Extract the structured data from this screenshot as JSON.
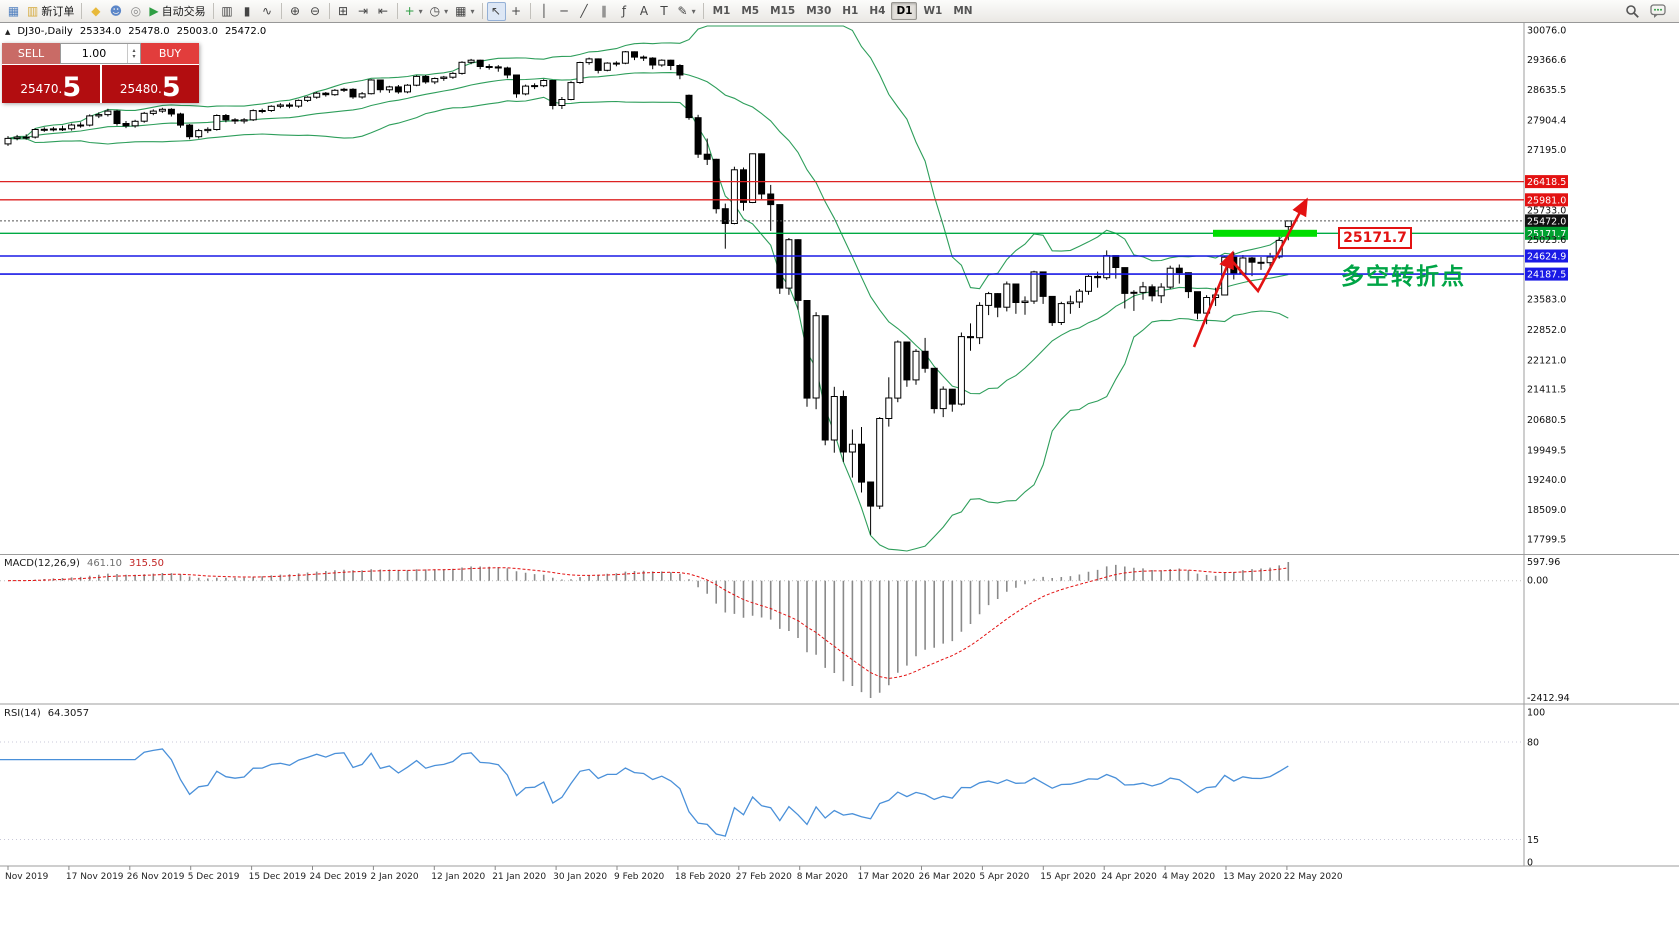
{
  "toolbar": {
    "items": [
      {
        "name": "chart-window-icon",
        "glyph": "▦",
        "color": "#4f7fbf"
      },
      {
        "name": "new-order-button",
        "glyph": "▥",
        "color": "#d5aa3c",
        "label": "新订单"
      },
      {
        "sep": true
      },
      {
        "name": "history-center-button",
        "glyph": "◆",
        "color": "#e8b93a"
      },
      {
        "name": "profile-button",
        "glyph": "☻",
        "color": "#5b86c8"
      },
      {
        "name": "community-button",
        "glyph": "◎",
        "color": "#8a8a8a"
      },
      {
        "name": "autotrading-button",
        "glyph": "▶",
        "color": "#2f9e44",
        "label": "自动交易"
      },
      {
        "sep": true
      },
      {
        "name": "bar-chart-button",
        "glyph": "▥"
      },
      {
        "name": "candlestick-chart-button",
        "glyph": "▮"
      },
      {
        "name": "line-chart-button",
        "glyph": "∿"
      },
      {
        "sep": true
      },
      {
        "name": "zoom-in-button",
        "glyph": "⊕"
      },
      {
        "name": "zoom-out-button",
        "glyph": "⊖"
      },
      {
        "sep": true
      },
      {
        "name": "tile-windows-button",
        "glyph": "⊞"
      },
      {
        "name": "auto-scroll-button",
        "glyph": "⇥"
      },
      {
        "name": "chart-shift-button",
        "glyph": "⇤"
      },
      {
        "sep": true
      },
      {
        "name": "new-chart-button",
        "glyph": "+",
        "color": "#2f9e44",
        "dropdown": true
      },
      {
        "name": "profiles-button",
        "glyph": "◷",
        "dropdown": true
      },
      {
        "name": "templates-button",
        "glyph": "▦",
        "dropdown": true
      },
      {
        "sep": true
      },
      {
        "name": "cursor-button",
        "glyph": "↖",
        "active": true
      },
      {
        "name": "crosshair-button",
        "glyph": "+"
      },
      {
        "sep": true
      },
      {
        "name": "vertical-line-button",
        "glyph": "│"
      },
      {
        "name": "horizontal-line-button",
        "glyph": "─"
      },
      {
        "name": "trendline-button",
        "glyph": "╱"
      },
      {
        "name": "channel-button",
        "glyph": "∥"
      },
      {
        "name": "fibonacci-button",
        "glyph": "ƒ"
      },
      {
        "name": "text-button",
        "glyph": "A"
      },
      {
        "name": "label-button",
        "glyph": "T"
      },
      {
        "name": "shapes-button",
        "glyph": "✎",
        "dropdown": true
      },
      {
        "sep": true
      }
    ],
    "timeframes": [
      "M1",
      "M5",
      "M15",
      "M30",
      "H1",
      "H4",
      "D1",
      "W1",
      "MN"
    ],
    "active_timeframe": "D1"
  },
  "chart_header": {
    "collapse_icon": "▲",
    "symbol": "DJ30-,Daily",
    "open": "25334.0",
    "high": "25478.0",
    "low": "25003.0",
    "close": "25472.0"
  },
  "trade_panel": {
    "sell_label": "SELL",
    "buy_label": "BUY",
    "volume": "1.00",
    "spinner_up": "▴",
    "spinner_down": "▾",
    "sell_price_main": "25470.",
    "sell_price_big": "5",
    "buy_price_main": "25480.",
    "buy_price_big": "5"
  },
  "annotations": {
    "price_label": "25171.7",
    "note_text": "多空转折点"
  },
  "chart_data": {
    "type": "candlestick",
    "symbol": "DJ30",
    "period": "Daily",
    "ohlc": [
      [
        27330,
        27517,
        27280,
        27462
      ],
      [
        27462,
        27545,
        27415,
        27493
      ],
      [
        27493,
        27560,
        27430,
        27492
      ],
      [
        27492,
        27700,
        27460,
        27675
      ],
      [
        27675,
        27730,
        27620,
        27681
      ],
      [
        27681,
        27740,
        27630,
        27691
      ],
      [
        27691,
        27770,
        27640,
        27692
      ],
      [
        27692,
        27820,
        27650,
        27784
      ],
      [
        27784,
        27850,
        27720,
        27782
      ],
      [
        27782,
        28040,
        27750,
        28005
      ],
      [
        28005,
        28090,
        27950,
        28036
      ],
      [
        28036,
        28175,
        27990,
        28121
      ],
      [
        28121,
        28150,
        27770,
        27821
      ],
      [
        27821,
        27880,
        27710,
        27766
      ],
      [
        27766,
        27910,
        27720,
        27875
      ],
      [
        27875,
        28100,
        27840,
        28066
      ],
      [
        28066,
        28160,
        28020,
        28121
      ],
      [
        28121,
        28200,
        28080,
        28164
      ],
      [
        28164,
        28190,
        27990,
        28051
      ],
      [
        28051,
        28080,
        27720,
        27783
      ],
      [
        27783,
        27810,
        27440,
        27503
      ],
      [
        27503,
        27690,
        27460,
        27650
      ],
      [
        27650,
        27730,
        27590,
        27678
      ],
      [
        27678,
        28040,
        27650,
        28015
      ],
      [
        28015,
        28050,
        27850,
        27910
      ],
      [
        27910,
        27950,
        27810,
        27882
      ],
      [
        27882,
        27950,
        27820,
        27911
      ],
      [
        27911,
        28160,
        27880,
        28132
      ],
      [
        28132,
        28180,
        28070,
        28135
      ],
      [
        28135,
        28260,
        28100,
        28236
      ],
      [
        28236,
        28310,
        28190,
        28267
      ],
      [
        28267,
        28320,
        28190,
        28239
      ],
      [
        28239,
        28400,
        28200,
        28377
      ],
      [
        28377,
        28480,
        28340,
        28455
      ],
      [
        28455,
        28580,
        28420,
        28551
      ],
      [
        28551,
        28580,
        28470,
        28516
      ],
      [
        28516,
        28650,
        28490,
        28622
      ],
      [
        28622,
        28680,
        28580,
        28645
      ],
      [
        28645,
        28670,
        28420,
        28462
      ],
      [
        28462,
        28580,
        28420,
        28538
      ],
      [
        28538,
        28890,
        28520,
        28869
      ],
      [
        28869,
        28880,
        28565,
        28635
      ],
      [
        28635,
        28730,
        28560,
        28704
      ],
      [
        28704,
        28750,
        28540,
        28584
      ],
      [
        28584,
        28770,
        28550,
        28745
      ],
      [
        28745,
        28980,
        28720,
        28957
      ],
      [
        28957,
        28990,
        28780,
        28824
      ],
      [
        28824,
        28930,
        28770,
        28907
      ],
      [
        28907,
        28970,
        28850,
        28939
      ],
      [
        28939,
        29060,
        28900,
        29030
      ],
      [
        29030,
        29320,
        29000,
        29298
      ],
      [
        29298,
        29380,
        29250,
        29348
      ],
      [
        29348,
        29360,
        29130,
        29196
      ],
      [
        29196,
        29250,
        29120,
        29186
      ],
      [
        29186,
        29230,
        29070,
        29160
      ],
      [
        29160,
        29190,
        28910,
        28990
      ],
      [
        28990,
        29000,
        28440,
        28536
      ],
      [
        28536,
        28760,
        28500,
        28723
      ],
      [
        28723,
        28790,
        28650,
        28734
      ],
      [
        28734,
        28890,
        28700,
        28859
      ],
      [
        28859,
        28870,
        28160,
        28256
      ],
      [
        28256,
        28460,
        28170,
        28400
      ],
      [
        28400,
        28840,
        28380,
        28808
      ],
      [
        28808,
        29310,
        28780,
        29291
      ],
      [
        29291,
        29410,
        29240,
        29380
      ],
      [
        29380,
        29390,
        29030,
        29103
      ],
      [
        29103,
        29300,
        29080,
        29277
      ],
      [
        29277,
        29320,
        29200,
        29276
      ],
      [
        29276,
        29570,
        29250,
        29551
      ],
      [
        29551,
        29560,
        29350,
        29423
      ],
      [
        29423,
        29460,
        29330,
        29398
      ],
      [
        29398,
        29420,
        29130,
        29232
      ],
      [
        29232,
        29370,
        29190,
        29348
      ],
      [
        29348,
        29360,
        29110,
        29220
      ],
      [
        29220,
        29250,
        28890,
        28992
      ],
      [
        28500,
        28520,
        27910,
        27961
      ],
      [
        27961,
        28030,
        26990,
        27081
      ],
      [
        27081,
        27460,
        26820,
        26958
      ],
      [
        26958,
        26970,
        25650,
        25767
      ],
      [
        25767,
        25890,
        24800,
        25409
      ],
      [
        25409,
        26780,
        25390,
        26703
      ],
      [
        26703,
        26760,
        25720,
        25917
      ],
      [
        25917,
        27100,
        25900,
        27091
      ],
      [
        27091,
        27100,
        26000,
        26121
      ],
      [
        26121,
        26340,
        25230,
        25865
      ],
      [
        25865,
        25870,
        23710,
        23851
      ],
      [
        23851,
        25060,
        23690,
        25018
      ],
      [
        25018,
        25030,
        23330,
        23553
      ],
      [
        23553,
        23560,
        20990,
        21200
      ],
      [
        21200,
        23270,
        20930,
        23186
      ],
      [
        23186,
        23190,
        20060,
        20188
      ],
      [
        20188,
        21470,
        19880,
        21237
      ],
      [
        21237,
        21380,
        19660,
        19899
      ],
      [
        19899,
        20440,
        19280,
        20087
      ],
      [
        20087,
        20500,
        18920,
        19174
      ],
      [
        19174,
        19180,
        17900,
        18592
      ],
      [
        18592,
        20740,
        18520,
        20705
      ],
      [
        20705,
        21700,
        20510,
        21200
      ],
      [
        21200,
        22590,
        21100,
        22552
      ],
      [
        22552,
        22560,
        21470,
        21637
      ],
      [
        21637,
        22380,
        21520,
        22327
      ],
      [
        22327,
        22650,
        21810,
        21917
      ],
      [
        21917,
        21920,
        20830,
        20944
      ],
      [
        20944,
        21480,
        20740,
        21413
      ],
      [
        21413,
        21420,
        20870,
        21053
      ],
      [
        21053,
        22780,
        21020,
        22680
      ],
      [
        22680,
        23000,
        22340,
        22654
      ],
      [
        22654,
        23510,
        22500,
        23434
      ],
      [
        23434,
        23760,
        23200,
        23719
      ],
      [
        23719,
        23730,
        23150,
        23391
      ],
      [
        23391,
        24010,
        23290,
        23950
      ],
      [
        23950,
        23960,
        23230,
        23504
      ],
      [
        23504,
        23650,
        23210,
        23537
      ],
      [
        23537,
        24270,
        23470,
        24242
      ],
      [
        24242,
        24250,
        23470,
        23650
      ],
      [
        23650,
        23660,
        22940,
        23019
      ],
      [
        23019,
        23520,
        22960,
        23476
      ],
      [
        23476,
        23670,
        23230,
        23515
      ],
      [
        23515,
        23830,
        23370,
        23775
      ],
      [
        23775,
        24170,
        23690,
        24134
      ],
      [
        24134,
        24250,
        23860,
        24102
      ],
      [
        24102,
        24760,
        24050,
        24634
      ],
      [
        24634,
        24640,
        24080,
        24346
      ],
      [
        24346,
        24350,
        23360,
        23724
      ],
      [
        23724,
        23800,
        23300,
        23749
      ],
      [
        23749,
        24000,
        23570,
        23883
      ],
      [
        23883,
        23940,
        23530,
        23665
      ],
      [
        23665,
        23970,
        23490,
        23876
      ],
      [
        23876,
        24390,
        23830,
        24331
      ],
      [
        24331,
        24420,
        23960,
        24222
      ],
      [
        24222,
        24230,
        23610,
        23765
      ],
      [
        23765,
        23770,
        23100,
        23248
      ],
      [
        23248,
        23680,
        22980,
        23625
      ],
      [
        23625,
        23860,
        23420,
        23685
      ],
      [
        23685,
        24620,
        23680,
        24597
      ],
      [
        24597,
        24720,
        24060,
        24207
      ],
      [
        24207,
        24650,
        24150,
        24576
      ],
      [
        24576,
        24600,
        24140,
        24474
      ],
      [
        24474,
        24600,
        24290,
        24465
      ],
      [
        24465,
        24700,
        24340,
        24602
      ],
      [
        24602,
        25090,
        24560,
        25001
      ],
      [
        25334,
        25478,
        25003,
        25472
      ]
    ],
    "x_axis_dates": [
      "Nov 2019",
      "17 Nov 2019",
      "26 Nov 2019",
      "5 Dec 2019",
      "15 Dec 2019",
      "24 Dec 2019",
      "2 Jan 2020",
      "12 Jan 2020",
      "21 Jan 2020",
      "30 Jan 2020",
      "9 Feb 2020",
      "18 Feb 2020",
      "27 Feb 2020",
      "8 Mar 2020",
      "17 Mar 2020",
      "26 Mar 2020",
      "5 Apr 2020",
      "15 Apr 2020",
      "24 Apr 2020",
      "4 May 2020",
      "13 May 2020",
      "22 May 2020"
    ],
    "y_axis": {
      "labels": [
        {
          "text": "30076.0",
          "value": 30076.0,
          "type": "normal"
        },
        {
          "text": "29366.6",
          "value": 29366.6,
          "type": "normal"
        },
        {
          "text": "28635.5",
          "value": 28635.5,
          "type": "normal"
        },
        {
          "text": "27904.4",
          "value": 27904.4,
          "type": "normal"
        },
        {
          "text": "27195.0",
          "value": 27195.0,
          "type": "normal"
        },
        {
          "text": "26418.5",
          "value": 26418.5,
          "type": "red"
        },
        {
          "text": "25981.0",
          "value": 25981.0,
          "type": "red"
        },
        {
          "text": "25733.0",
          "value": 25733.0,
          "type": "normal"
        },
        {
          "text": "25472.0",
          "value": 25472.0,
          "type": "black"
        },
        {
          "text": "25171.7",
          "value": 25171.7,
          "type": "green"
        },
        {
          "text": "25023.6",
          "value": 25023.6,
          "type": "normal"
        },
        {
          "text": "24624.9",
          "value": 24624.9,
          "type": "blue"
        },
        {
          "text": "24187.5",
          "value": 24187.5,
          "type": "blue"
        },
        {
          "text": "23583.0",
          "value": 23583.0,
          "type": "normal"
        },
        {
          "text": "22852.0",
          "value": 22852.0,
          "type": "normal"
        },
        {
          "text": "22121.0",
          "value": 22121.0,
          "type": "normal"
        },
        {
          "text": "21411.5",
          "value": 21411.5,
          "type": "normal"
        },
        {
          "text": "20680.5",
          "value": 20680.5,
          "type": "normal"
        },
        {
          "text": "19949.5",
          "value": 19949.5,
          "type": "normal"
        },
        {
          "text": "19240.0",
          "value": 19240.0,
          "type": "normal"
        },
        {
          "text": "18509.0",
          "value": 18509.0,
          "type": "normal"
        },
        {
          "text": "17799.5",
          "value": 17799.5,
          "type": "normal"
        }
      ]
    },
    "levels": [
      {
        "name": "resistance-line-26418",
        "value": 26418.5,
        "color": "#dd2222",
        "width": 1.3
      },
      {
        "name": "resistance-line-25981",
        "value": 25981.0,
        "color": "#dd2222",
        "width": 1.3
      },
      {
        "name": "current-price-line",
        "value": 25472.0,
        "color": "#555555",
        "width": 1,
        "dash": "2,2"
      },
      {
        "name": "support-line-25171",
        "value": 25171.7,
        "color": "#00aa44",
        "width": 1.4
      },
      {
        "name": "support-line-24624",
        "value": 24624.9,
        "color": "#1a1ae6",
        "width": 1.6
      },
      {
        "name": "support-line-24187",
        "value": 24187.5,
        "color": "#1a1ae6",
        "width": 1.6
      }
    ],
    "indicators": {
      "bollinger": {
        "period": 20,
        "deviation": 2
      },
      "macd": {
        "title": "MACD(12,26,9)",
        "value_main": "461.10",
        "value_signal": "315.50",
        "axis_max": "597.96",
        "axis_zero": "0.00",
        "axis_min": "-2412.94"
      },
      "rsi": {
        "title": "RSI(14)",
        "value": "64.3057",
        "axis": [
          {
            "text": "100",
            "value": 100
          },
          {
            "text": "80",
            "value": 80
          },
          {
            "text": "15",
            "value": 15
          },
          {
            "text": "0",
            "value": 0
          }
        ]
      }
    }
  }
}
